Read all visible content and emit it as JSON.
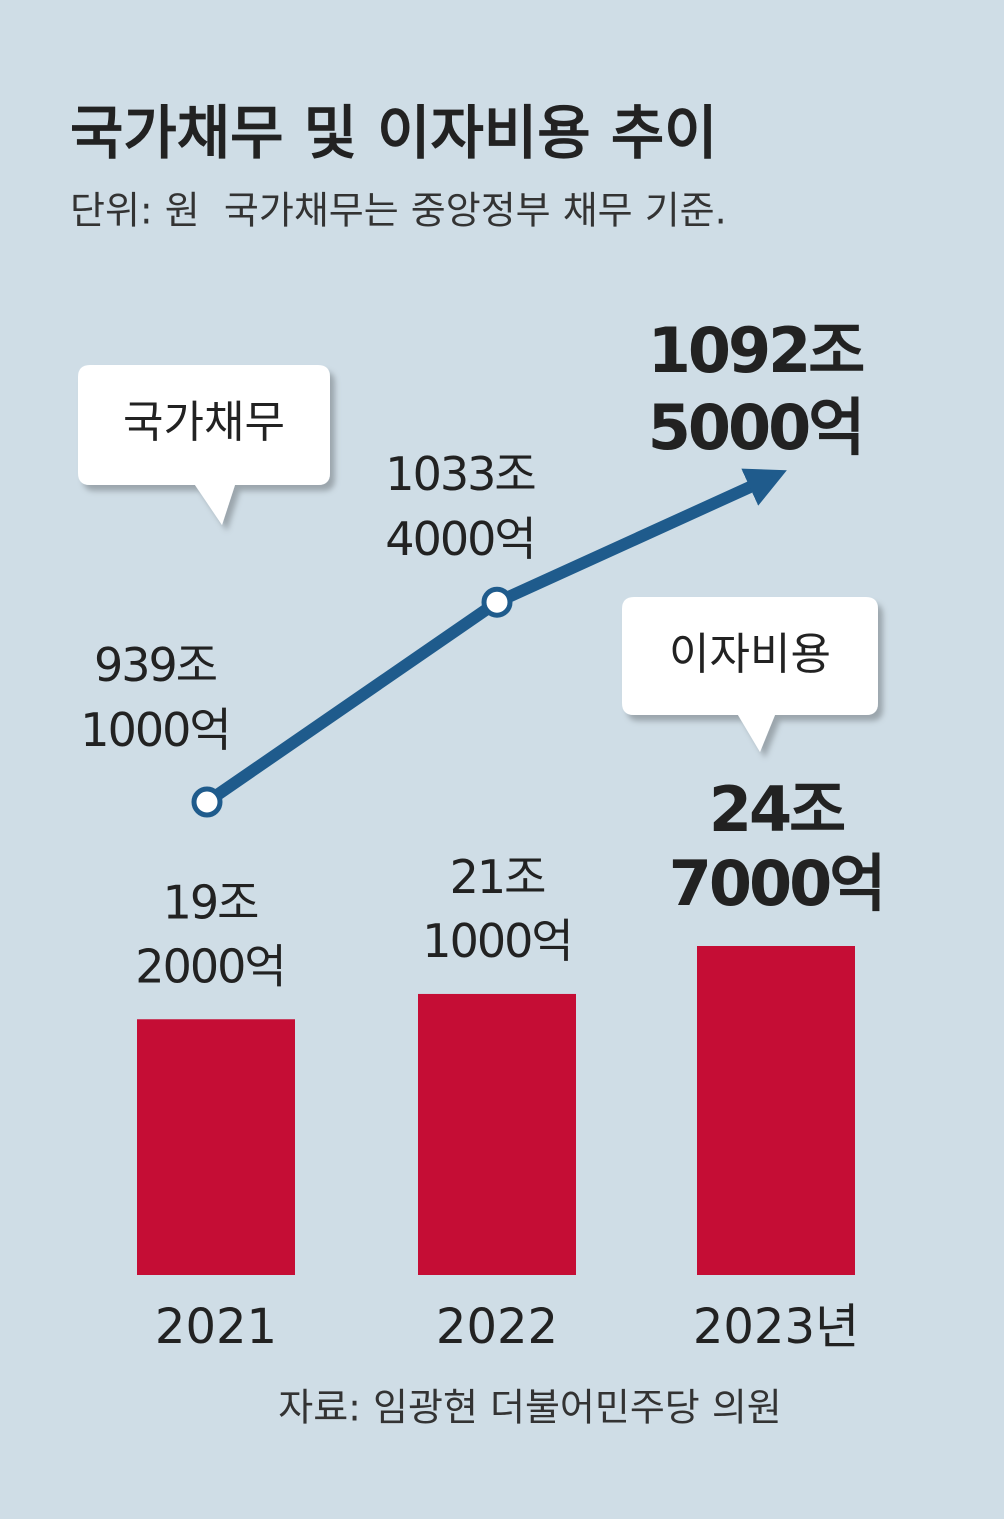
{
  "chart_data": {
    "type": "combo",
    "title": "국가채무 및 이자비용 추이",
    "subtitle": "단위: 원  국가채무는 중앙정부 채무 기준.",
    "source": "자료: 임광현 더불어민주당 의원",
    "categories": [
      "2021",
      "2022",
      "2023년"
    ],
    "series": [
      {
        "name": "국가채무",
        "type": "line",
        "color": "#1f5b8c",
        "values": [
          939.1,
          1033.4,
          1092.5
        ],
        "value_labels": [
          [
            "939조",
            "1000억"
          ],
          [
            "1033조",
            "4000억"
          ],
          [
            "1092조",
            "5000억"
          ]
        ]
      },
      {
        "name": "이자비용",
        "type": "bar",
        "color": "#c50d35",
        "values": [
          19.2,
          21.1,
          24.7
        ],
        "value_labels": [
          [
            "19조",
            "2000억"
          ],
          [
            "21조",
            "1000억"
          ],
          [
            "24조",
            "7000억"
          ]
        ]
      }
    ]
  }
}
